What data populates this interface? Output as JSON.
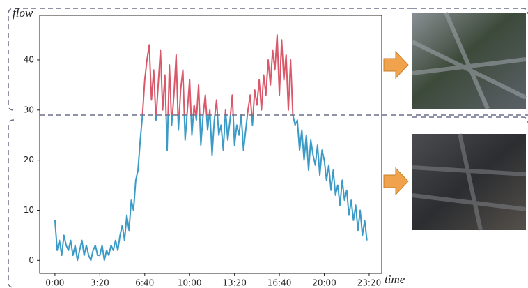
{
  "chart_data": {
    "type": "line",
    "y_label": "flow",
    "x_label": "time",
    "threshold": 29,
    "color_above": "#d9596b",
    "color_below": "#3b9bc6",
    "x": [
      0,
      10,
      20,
      30,
      40,
      50,
      60,
      70,
      80,
      90,
      100,
      110,
      120,
      130,
      140,
      150,
      160,
      170,
      180,
      190,
      200,
      210,
      220,
      230,
      240,
      250,
      260,
      270,
      280,
      290,
      300,
      310,
      320,
      330,
      340,
      350,
      360,
      370,
      380,
      390,
      400,
      410,
      420,
      430,
      440,
      450,
      460,
      470,
      480,
      490,
      500,
      510,
      520,
      530,
      540,
      550,
      560,
      570,
      580,
      590,
      600,
      610,
      620,
      630,
      640,
      650,
      660,
      670,
      680,
      690,
      700,
      710,
      720,
      730,
      740,
      750,
      760,
      770,
      780,
      790,
      800,
      810,
      820,
      830,
      840,
      850,
      860,
      870,
      880,
      890,
      900,
      910,
      920,
      930,
      940,
      950,
      960,
      970,
      980,
      990,
      1000,
      1010,
      1020,
      1030,
      1040,
      1050,
      1060,
      1070,
      1080,
      1090,
      1100,
      1110,
      1120,
      1130,
      1140,
      1150,
      1160,
      1170,
      1180,
      1190,
      1200,
      1210,
      1220,
      1230,
      1240,
      1250,
      1260,
      1270,
      1280,
      1290,
      1300,
      1310,
      1320,
      1330,
      1340,
      1350,
      1360,
      1370,
      1380,
      1390
    ],
    "values": [
      8,
      2,
      4,
      1,
      5,
      3,
      2,
      4,
      1,
      3,
      0,
      2,
      4,
      1,
      3,
      1,
      0,
      2,
      3,
      1,
      1,
      3,
      0,
      2,
      1,
      3,
      2,
      4,
      2,
      5,
      7,
      4,
      9,
      6,
      12,
      10,
      16,
      18,
      24,
      29,
      36,
      40,
      43,
      32,
      38,
      28,
      35,
      42,
      30,
      37,
      22,
      39,
      27,
      33,
      41,
      26,
      34,
      38,
      24,
      30,
      36,
      25,
      31,
      28,
      35,
      23,
      29,
      33,
      26,
      30,
      21,
      28,
      32,
      25,
      27,
      22,
      30,
      24,
      28,
      33,
      23,
      27,
      25,
      29,
      22,
      26,
      30,
      33,
      27,
      34,
      31,
      36,
      30,
      37,
      33,
      40,
      35,
      42,
      38,
      45,
      33,
      44,
      36,
      41,
      30,
      40,
      29,
      27,
      28,
      22,
      26,
      20,
      25,
      18,
      24,
      21,
      19,
      23,
      17,
      22,
      20,
      16,
      19,
      14,
      18,
      13,
      15,
      11,
      16,
      12,
      14,
      9,
      12,
      8,
      11,
      6,
      10,
      5,
      8,
      4
    ],
    "xlim": [
      -68,
      1456
    ],
    "xticks": [
      {
        "value": 0,
        "label": "0:00"
      },
      {
        "value": 200,
        "label": "3:20"
      },
      {
        "value": 400,
        "label": "6:40"
      },
      {
        "value": 600,
        "label": "10:00"
      },
      {
        "value": 800,
        "label": "13:20"
      },
      {
        "value": 1000,
        "label": "16:40"
      },
      {
        "value": 1200,
        "label": "20:00"
      },
      {
        "value": 1400,
        "label": "23:20"
      }
    ],
    "ylim": [
      -2.6,
      48.9
    ],
    "yticks": [
      0,
      10,
      20,
      30,
      40
    ]
  }
}
